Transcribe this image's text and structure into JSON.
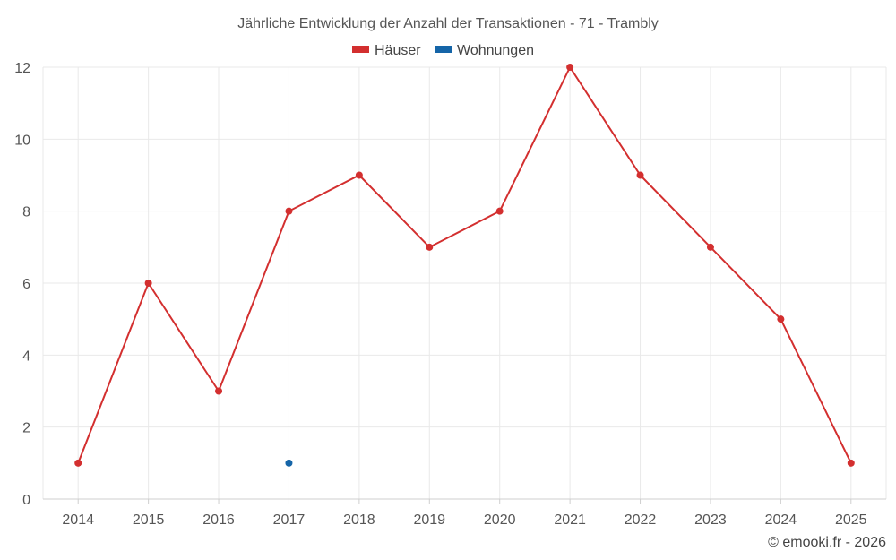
{
  "chart_data": {
    "type": "line",
    "title": "Jährliche Entwicklung der Anzahl der Transaktionen - 71 - Trambly",
    "categories": [
      "2014",
      "2015",
      "2016",
      "2017",
      "2018",
      "2019",
      "2020",
      "2021",
      "2022",
      "2023",
      "2024",
      "2025"
    ],
    "series": [
      {
        "name": "Häuser",
        "color": "#d32f2f",
        "values": [
          1,
          6,
          3,
          8,
          9,
          7,
          8,
          12,
          9,
          7,
          5,
          1
        ]
      },
      {
        "name": "Wohnungen",
        "color": "#1565a8",
        "values": [
          null,
          null,
          null,
          1,
          null,
          null,
          null,
          null,
          null,
          null,
          null,
          null
        ]
      }
    ],
    "ylim": [
      0,
      12
    ],
    "yticks": [
      0,
      2,
      4,
      6,
      8,
      10,
      12
    ],
    "grid": true,
    "legend": "top-center",
    "xlabel": "",
    "ylabel": ""
  },
  "credit": "© emooki.fr - 2026"
}
